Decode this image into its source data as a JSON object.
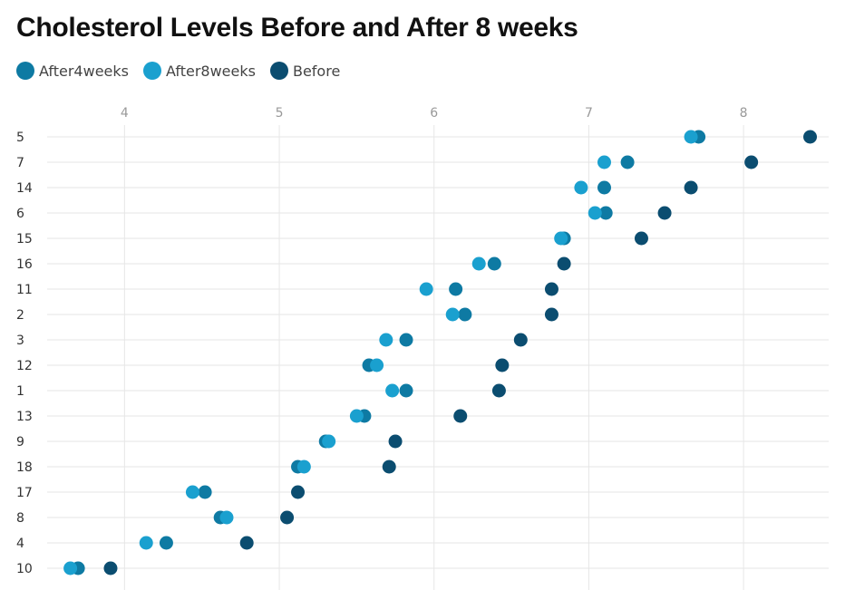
{
  "chart_data": {
    "type": "scatter",
    "title": "Cholesterol Levels Before and After 8 weeks",
    "xlabel": "",
    "ylabel": "",
    "xlim": [
      3.5,
      8.55
    ],
    "xticks": [
      "4",
      "5",
      "6",
      "7",
      "8"
    ],
    "categories": [
      "5",
      "7",
      "14",
      "6",
      "15",
      "16",
      "11",
      "2",
      "3",
      "12",
      "1",
      "13",
      "9",
      "18",
      "17",
      "8",
      "4",
      "10"
    ],
    "legend_position": "top-left",
    "grid": true,
    "series": [
      {
        "name": "After4weeks",
        "color": "#0e7aa3",
        "values": [
          7.71,
          7.25,
          7.1,
          7.11,
          6.84,
          6.39,
          6.14,
          6.2,
          5.82,
          5.58,
          5.82,
          5.55,
          5.3,
          5.12,
          4.52,
          4.62,
          4.27,
          3.7
        ]
      },
      {
        "name": "After8weeks",
        "color": "#1aa0cf",
        "values": [
          7.66,
          7.1,
          6.95,
          7.04,
          6.82,
          6.29,
          5.95,
          6.12,
          5.69,
          5.63,
          5.73,
          5.5,
          5.32,
          5.16,
          4.44,
          4.66,
          4.14,
          3.65
        ]
      },
      {
        "name": "Before",
        "color": "#0b4d70",
        "values": [
          8.43,
          8.05,
          7.66,
          7.49,
          7.34,
          6.84,
          6.76,
          6.76,
          6.56,
          6.44,
          6.42,
          6.17,
          5.75,
          5.71,
          5.12,
          5.05,
          4.79,
          3.91
        ]
      }
    ]
  }
}
